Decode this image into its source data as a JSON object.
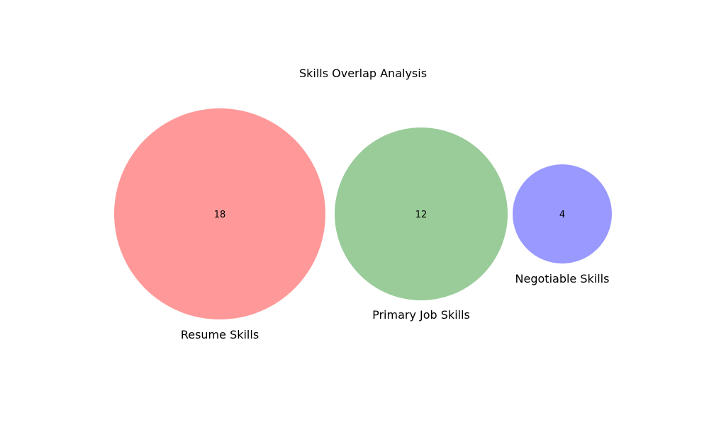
{
  "diagram": {
    "title": "Skills Overlap Analysis",
    "sets": [
      {
        "name": "Resume Skills",
        "count": "18",
        "color": "#ff9999"
      },
      {
        "name": "Primary Job Skills",
        "count": "12",
        "color": "#99cc99"
      },
      {
        "name": "Negotiable Skills",
        "count": "4",
        "color": "#9999ff"
      }
    ]
  }
}
